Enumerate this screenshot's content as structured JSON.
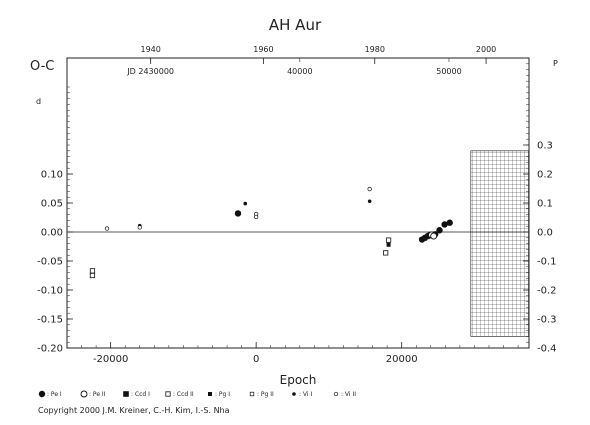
{
  "chart_data": {
    "type": "scatter",
    "title": "AH  Aur",
    "ylabel": "O-C",
    "xlabel": "Epoch",
    "day_marker": "d",
    "phase_marker": "P",
    "xlim": [
      -26000,
      37500
    ],
    "ylim": [
      -0.2,
      0.3
    ],
    "x_ticks": [
      -20000,
      0,
      20000
    ],
    "y_ticks_left": [
      "-0.20",
      "-0.15",
      "-0.10",
      "-0.05",
      "0.00",
      "0.05",
      "0.10"
    ],
    "y_ticks_left_values": [
      -0.2,
      -0.15,
      -0.1,
      -0.05,
      0.0,
      0.05,
      0.1
    ],
    "y_ticks_right": [
      "-0.4",
      "-0.3",
      "-0.2",
      "-0.1",
      "0.0",
      "0.1",
      "0.2",
      "0.3"
    ],
    "y_ticks_right_values": [
      -0.2,
      -0.15,
      -0.1,
      -0.05,
      0.0,
      0.05,
      0.1,
      0.15
    ],
    "top_year_ticks": [
      {
        "label": "1940",
        "x": -14500
      },
      {
        "label": "1960",
        "x": 1000
      },
      {
        "label": "1980",
        "x": 16300
      },
      {
        "label": "2000",
        "x": 31600
      }
    ],
    "top_jd_ticks": [
      {
        "label": "JD  2430000",
        "x": -14500
      },
      {
        "label": "40000",
        "x": 6000
      },
      {
        "label": "50000",
        "x": 26500
      }
    ],
    "hatched_region_x": [
      29500,
      37500
    ],
    "hatched_region_y": [
      -0.18,
      0.14
    ],
    "legend_items": [
      {
        "symbol": "filled-circle",
        "label": ": Pe I"
      },
      {
        "symbol": "open-circle",
        "label": ": Pe II"
      },
      {
        "symbol": "filled-square",
        "label": ": Ccd I"
      },
      {
        "symbol": "open-square",
        "label": ": Ccd II"
      },
      {
        "symbol": "filled-square-small",
        "label": ": Pg I"
      },
      {
        "symbol": "open-square-small",
        "label": ": Pg II"
      },
      {
        "symbol": "filled-dot",
        "label": ": Vi I"
      },
      {
        "symbol": "open-dot",
        "label": ": Vi II"
      }
    ],
    "series": [
      {
        "symbol": "filled-circle",
        "points": [
          [
            -2500,
            0.032
          ],
          [
            22800,
            -0.013
          ],
          [
            23200,
            -0.01
          ],
          [
            23600,
            -0.007
          ],
          [
            24200,
            -0.006
          ],
          [
            24600,
            -0.004
          ],
          [
            25200,
            0.003
          ],
          [
            25900,
            0.013
          ],
          [
            26600,
            0.016
          ],
          [
            23900,
            -0.005
          ]
        ]
      },
      {
        "symbol": "open-circle",
        "points": [
          [
            24100,
            -0.005
          ],
          [
            24400,
            -0.007
          ]
        ]
      },
      {
        "symbol": "open-square",
        "points": [
          [
            -22500,
            -0.067
          ],
          [
            -22500,
            -0.075
          ],
          [
            17800,
            -0.036
          ],
          [
            18200,
            -0.014
          ]
        ]
      },
      {
        "symbol": "filled-square-small",
        "points": [
          [
            18200,
            -0.022
          ]
        ]
      },
      {
        "symbol": "filled-dot",
        "points": [
          [
            -16000,
            0.011
          ],
          [
            -1500,
            0.049
          ],
          [
            15600,
            0.053
          ]
        ]
      },
      {
        "symbol": "open-dot",
        "points": [
          [
            -20500,
            0.006
          ],
          [
            -16000,
            0.008
          ],
          [
            0,
            0.031
          ],
          [
            0,
            0.026
          ],
          [
            15600,
            0.074
          ]
        ]
      }
    ]
  },
  "copyright": "Copyright 2000 J.M. Kreiner, C.-H. Kim, I.-S. Nha"
}
